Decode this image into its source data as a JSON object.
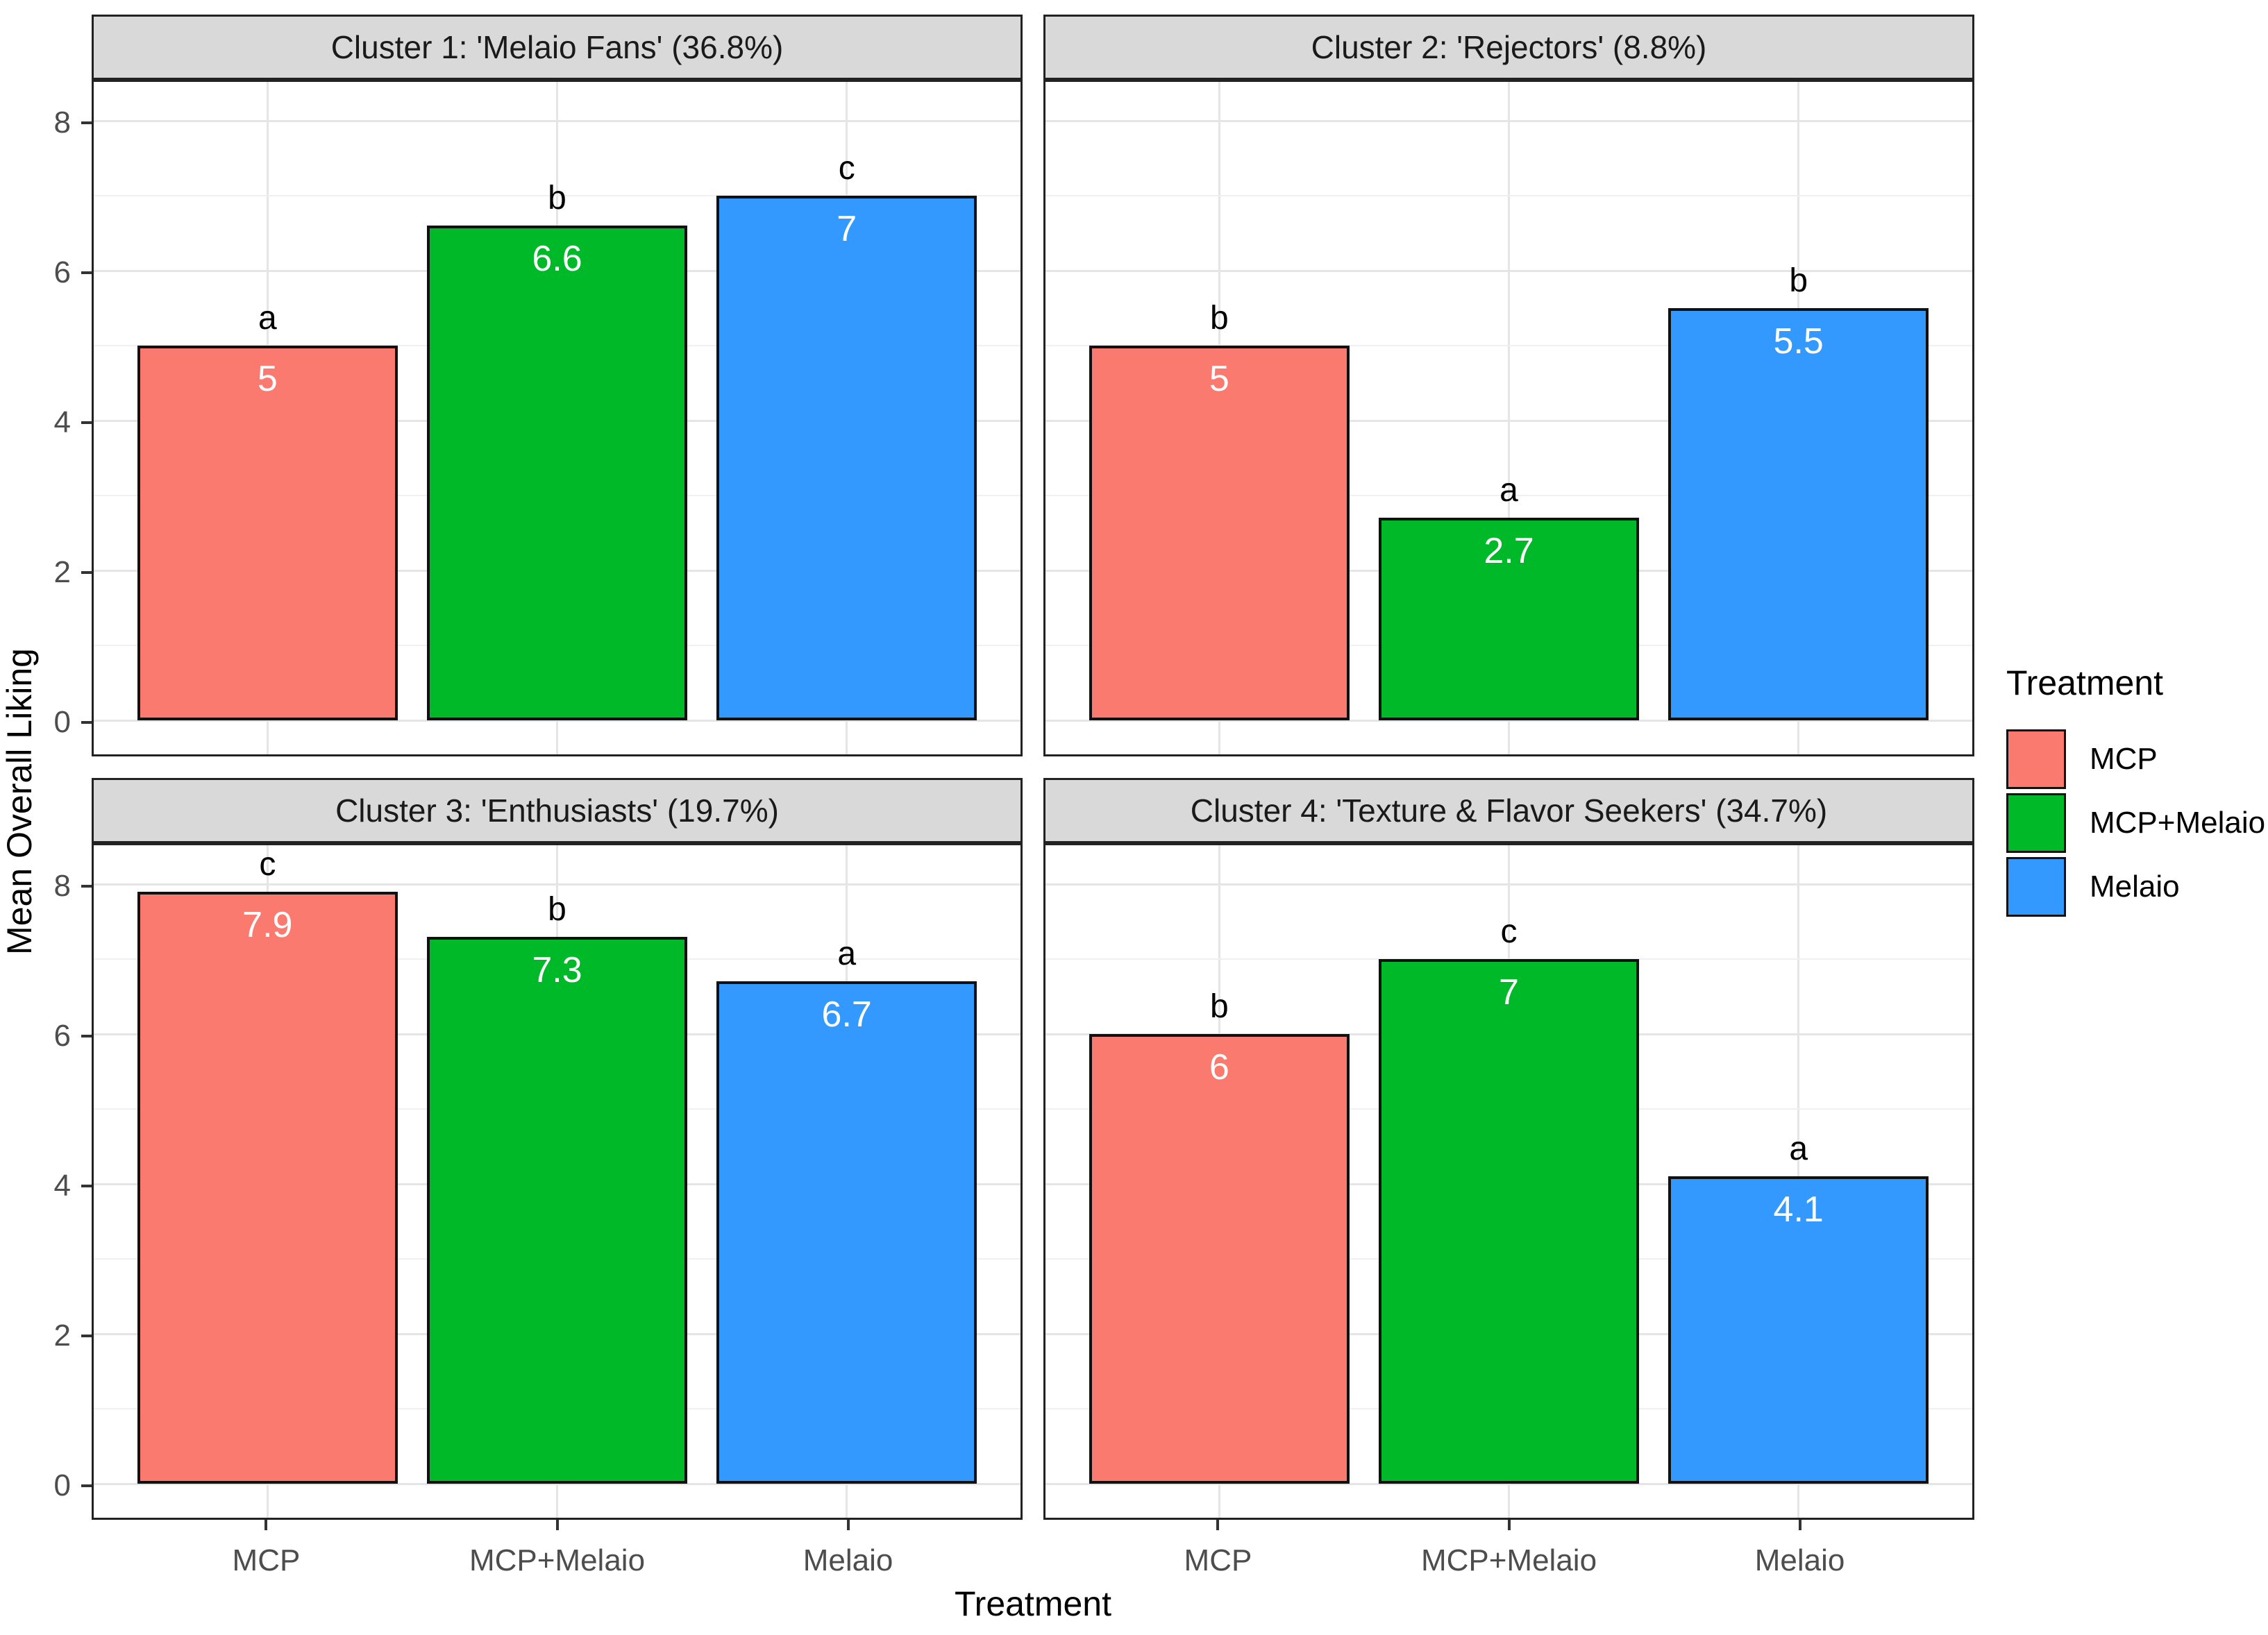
{
  "axes": {
    "y_title": "Mean Overall Liking",
    "x_title": "Treatment"
  },
  "legend": {
    "title": "Treatment",
    "position": "right",
    "items": [
      {
        "label": "MCP",
        "color": "#FB7A70"
      },
      {
        "label": "MCP+Melaio",
        "color": "#00B928"
      },
      {
        "label": "Melaio",
        "color": "#3399FF"
      }
    ]
  },
  "chart_data": {
    "type": "bar",
    "categories": [
      "MCP",
      "MCP+Melaio",
      "Melaio"
    ],
    "xlabel": "Treatment",
    "ylabel": "Mean Overall Liking",
    "ylim": [
      0,
      8.6
    ],
    "yticks": [
      0,
      2,
      4,
      6,
      8
    ],
    "yticks_minor": [
      1,
      3,
      5,
      7
    ],
    "grid": true,
    "legend_position": "right",
    "facets": [
      {
        "title": "Cluster 1: 'Melaio Fans' (36.8%)",
        "values": [
          5,
          6.6,
          7
        ],
        "value_labels": [
          "5",
          "6.6",
          "7"
        ],
        "sig_letters": [
          "a",
          "b",
          "c"
        ]
      },
      {
        "title": "Cluster 2: 'Rejectors' (8.8%)",
        "values": [
          5,
          2.7,
          5.5
        ],
        "value_labels": [
          "5",
          "2.7",
          "5.5"
        ],
        "sig_letters": [
          "b",
          "a",
          "b"
        ]
      },
      {
        "title": "Cluster 3: 'Enthusiasts' (19.7%)",
        "values": [
          7.9,
          7.3,
          6.7
        ],
        "value_labels": [
          "7.9",
          "7.3",
          "6.7"
        ],
        "sig_letters": [
          "c",
          "b",
          "a"
        ]
      },
      {
        "title": "Cluster 4: 'Texture & Flavor Seekers' (34.7%)",
        "values": [
          6,
          7,
          4.1
        ],
        "value_labels": [
          "6",
          "7",
          "4.1"
        ],
        "sig_letters": [
          "b",
          "c",
          "a"
        ]
      }
    ]
  }
}
